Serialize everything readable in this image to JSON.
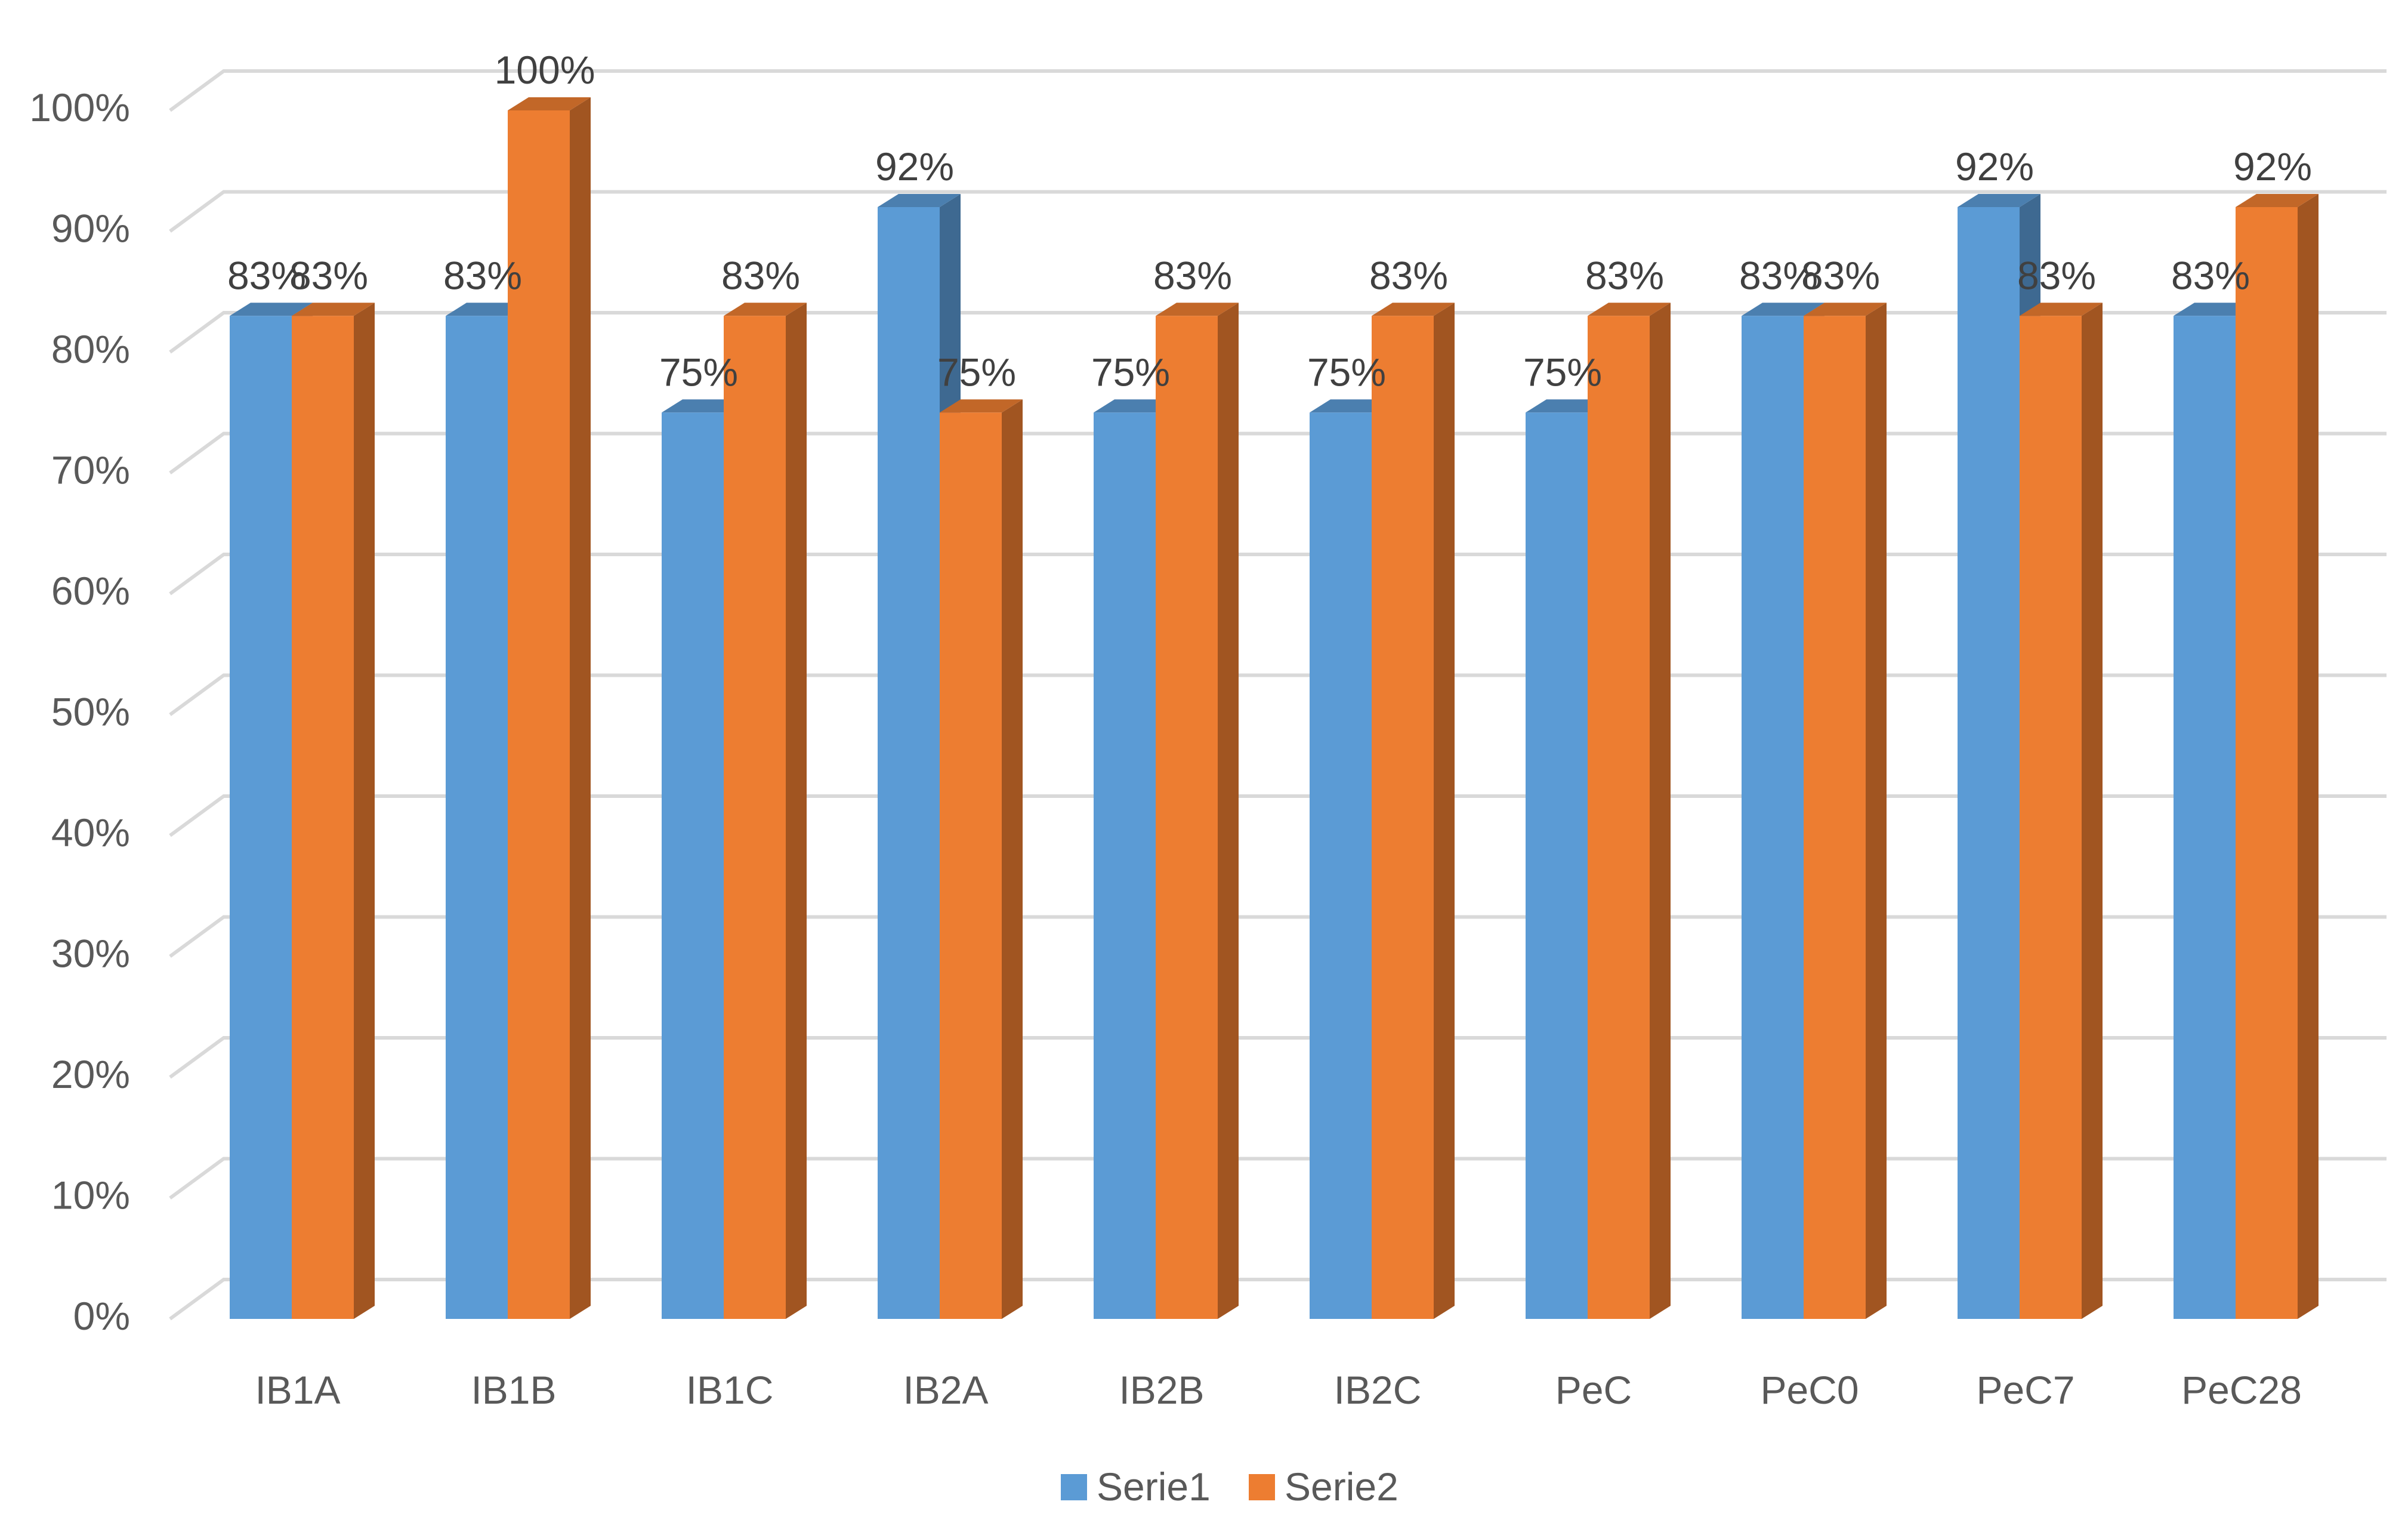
{
  "chart_data": {
    "type": "bar",
    "title": "",
    "xlabel": "",
    "ylabel": "",
    "ylim": [
      0,
      1
    ],
    "yticks": [
      0,
      0.1,
      0.2,
      0.3,
      0.4,
      0.5,
      0.6,
      0.7,
      0.8,
      0.9,
      1.0
    ],
    "ytick_labels": [
      "0%",
      "10%",
      "20%",
      "30%",
      "40%",
      "50%",
      "60%",
      "70%",
      "80%",
      "90%",
      "100%"
    ],
    "grid": true,
    "style": "3d-clustered-column",
    "legend_position": "bottom",
    "categories": [
      "IB1A",
      "IB1B",
      "IB1C",
      "IB2A",
      "IB2B",
      "IB2C",
      "PeC",
      "PeC0",
      "PeC7",
      "PeC28"
    ],
    "series": [
      {
        "name": "Serie1",
        "color": "#5B9BD5",
        "values": [
          0.83,
          0.83,
          0.75,
          0.92,
          0.75,
          0.75,
          0.75,
          0.83,
          0.92,
          0.83
        ],
        "labels": [
          "83%",
          "83%",
          "75%",
          "92%",
          "75%",
          "75%",
          "75%",
          "83%",
          "92%",
          "83%"
        ]
      },
      {
        "name": "Serie2",
        "color": "#ED7D31",
        "values": [
          0.83,
          1.0,
          0.83,
          0.75,
          0.83,
          0.83,
          0.83,
          0.83,
          0.83,
          0.92
        ],
        "labels": [
          "83%",
          "100%",
          "83%",
          "75%",
          "83%",
          "83%",
          "83%",
          "83%",
          "83%",
          "92%"
        ]
      }
    ]
  }
}
